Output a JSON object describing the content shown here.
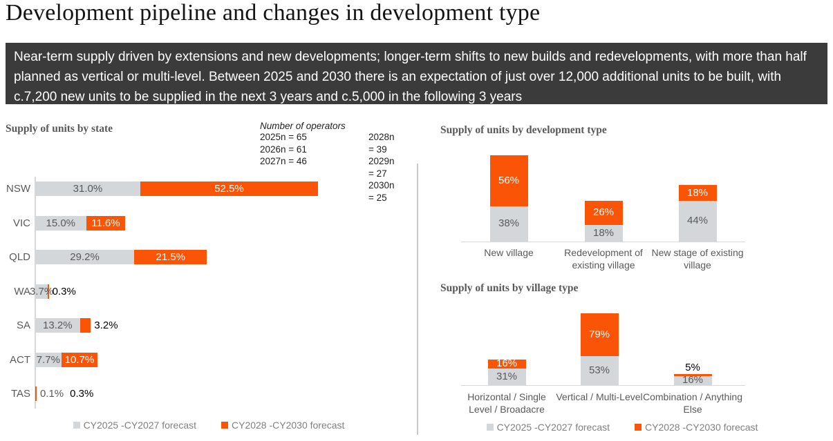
{
  "title": "Development pipeline and changes in development type",
  "banner": {
    "text": "Near-term supply driven by extensions and new developments; longer-term shifts to new builds and redevelopments, with more than half planned as vertical or multi-level. Between 2025 and 2030 there is an expectation of just over 12,000 additional units to be built, with c.7,200 new units to be supplied in the next 3 years and c.5,000 in the following 3 years",
    "bg_color": "#3B3B3B"
  },
  "operators": {
    "label": "Number of operators",
    "col1": [
      "2025n = 65",
      "2026n = 61",
      "2027n = 46"
    ],
    "col2": [
      "2028n = 39",
      "2029n = 27",
      "2030n = 25"
    ]
  },
  "legend": {
    "near_label": "CY2025 -CY2027 forecast",
    "far_label": "CY2028 -CY2030 forecast"
  },
  "colors": {
    "near": "#D3D7DA",
    "far": "#FA5406",
    "inside_gray_text": "#595959",
    "inside_orange_text": "#FFFFFF",
    "outside_text": "#000000",
    "axis": "#D9D9D9"
  },
  "chart_data": [
    {
      "id": "state",
      "type": "bar",
      "orientation": "horizontal",
      "stacked": true,
      "title": "Supply of units by state",
      "unit": "%",
      "categories": [
        "NSW",
        "VIC",
        "QLD",
        "WA",
        "SA",
        "ACT",
        "TAS"
      ],
      "series": [
        {
          "name": "CY2025 -CY2027 forecast",
          "values": [
            31.0,
            15.0,
            29.2,
            3.7,
            13.2,
            7.7,
            0.1
          ],
          "labels": [
            "31.0%",
            "15.0%",
            "29.2%",
            "3.7%",
            "13.2%",
            "7.7%",
            "0.1%"
          ]
        },
        {
          "name": "CY2028 -CY2030 forecast",
          "values": [
            52.5,
            11.6,
            21.5,
            0.3,
            3.2,
            10.7,
            0.3
          ],
          "labels": [
            "52.5%",
            "11.6%",
            "21.5%",
            "0.3%",
            "3.2%",
            "10.7%",
            "0.3%"
          ]
        }
      ],
      "xlim": [
        0,
        100
      ],
      "grid": false,
      "legend_position": "bottom"
    },
    {
      "id": "devtype",
      "type": "bar",
      "orientation": "vertical",
      "stacked": true,
      "title": "Supply of units by development type",
      "unit": "%",
      "categories": [
        "New village",
        "Redevelopment of existing village",
        "New stage of existing village"
      ],
      "series": [
        {
          "name": "CY2025 -CY2027 forecast",
          "values": [
            38,
            18,
            44
          ],
          "labels": [
            "38%",
            "18%",
            "44%"
          ]
        },
        {
          "name": "CY2028 -CY2030 forecast",
          "values": [
            56,
            26,
            18
          ],
          "labels": [
            "56%",
            "26%",
            "18%"
          ]
        }
      ],
      "grid": false
    },
    {
      "id": "villagetype",
      "type": "bar",
      "orientation": "vertical",
      "stacked": true,
      "title": "Supply of units by village type",
      "unit": "%",
      "categories": [
        "Horizontal / Single Level / Broadacre",
        "Vertical / Multi-Level",
        "Combination / Anything Else"
      ],
      "series": [
        {
          "name": "CY2025 -CY2027 forecast",
          "values": [
            31,
            53,
            16
          ],
          "labels": [
            "31%",
            "53%",
            "16%"
          ]
        },
        {
          "name": "CY2028 -CY2030 forecast",
          "values": [
            16,
            79,
            5
          ],
          "labels": [
            "16%",
            "79%",
            "5%"
          ]
        }
      ],
      "grid": false,
      "legend_position": "bottom"
    }
  ]
}
